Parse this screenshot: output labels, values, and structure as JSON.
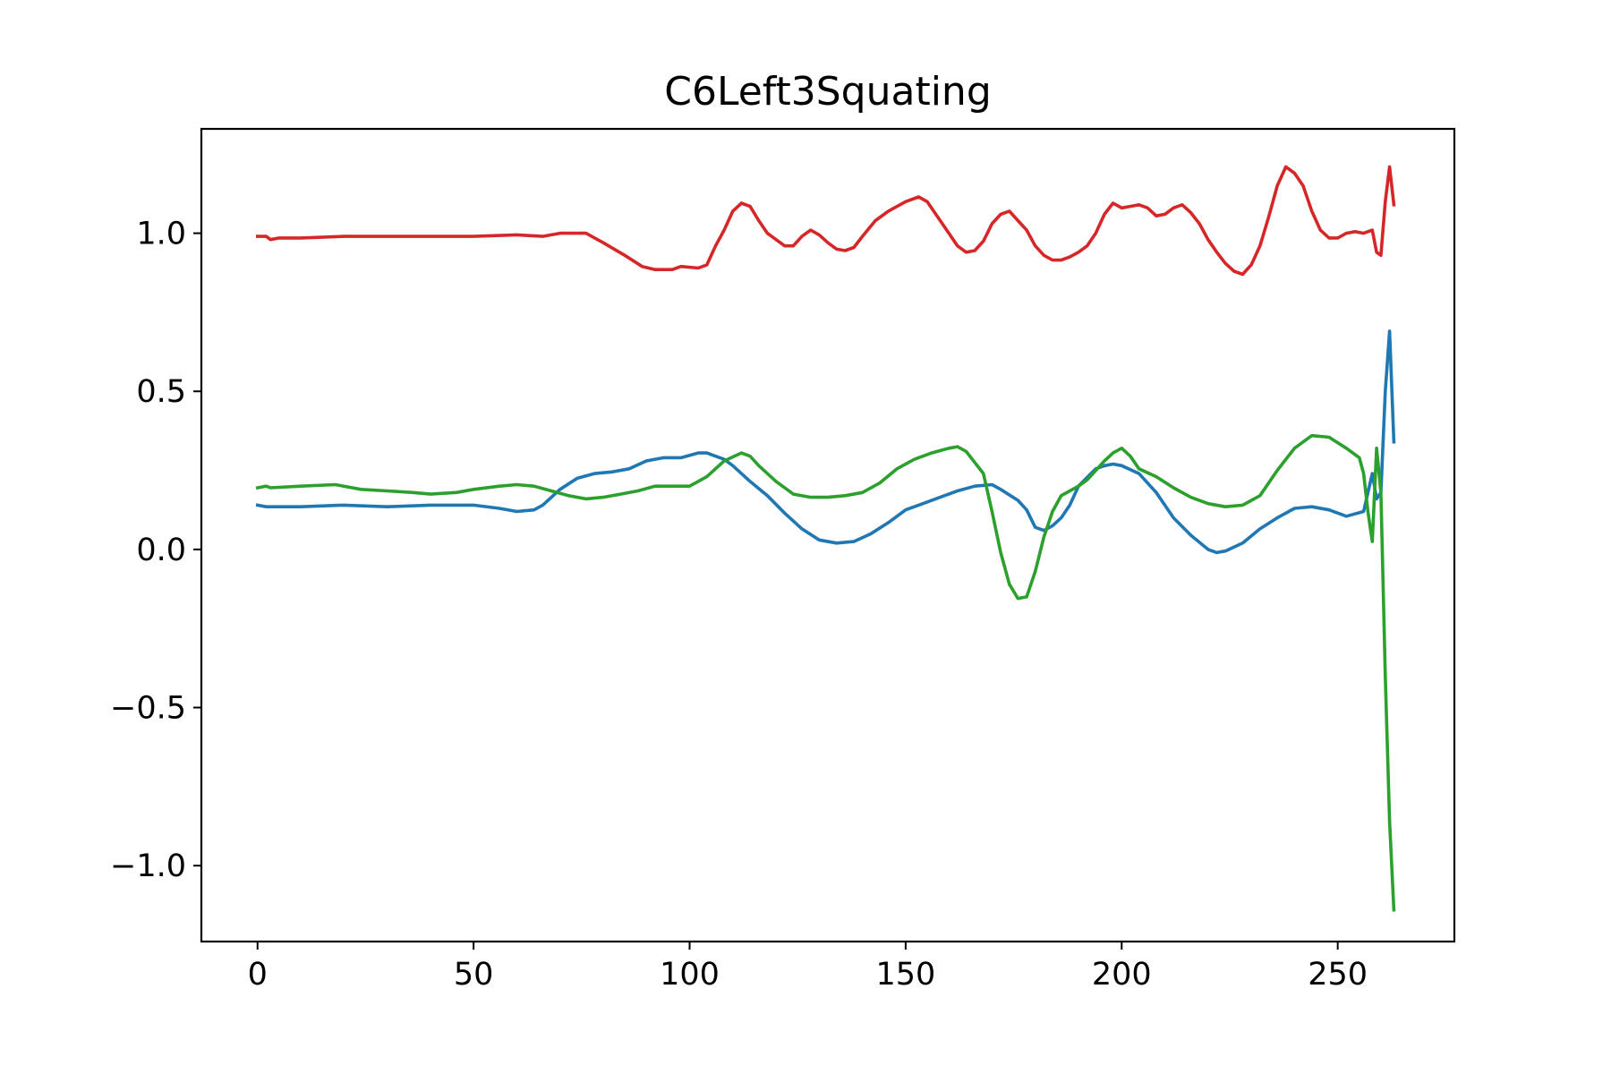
{
  "chart_data": {
    "type": "line",
    "title": "C6Left3Squating",
    "xlabel": "",
    "ylabel": "",
    "xlim": [
      -13,
      277
    ],
    "ylim": [
      -1.24,
      1.33
    ],
    "x_ticks": [
      0,
      50,
      100,
      150,
      200,
      250
    ],
    "x_tick_labels": [
      "0",
      "50",
      "100",
      "150",
      "200",
      "250"
    ],
    "y_ticks": [
      1.0,
      0.5,
      0.0,
      -0.5,
      -1.0
    ],
    "y_tick_labels": [
      "1.0",
      "0.5",
      "0.0",
      "−0.5",
      "−1.0"
    ],
    "grid": false,
    "legend": "none",
    "series": [
      {
        "color": "#d62728",
        "points": [
          [
            0,
            0.99
          ],
          [
            2,
            0.99
          ],
          [
            3,
            0.98
          ],
          [
            5,
            0.985
          ],
          [
            10,
            0.985
          ],
          [
            20,
            0.99
          ],
          [
            30,
            0.99
          ],
          [
            40,
            0.99
          ],
          [
            50,
            0.99
          ],
          [
            60,
            0.995
          ],
          [
            66,
            0.99
          ],
          [
            70,
            1.0
          ],
          [
            76,
            1.0
          ],
          [
            80,
            0.97
          ],
          [
            85,
            0.93
          ],
          [
            89,
            0.895
          ],
          [
            92,
            0.885
          ],
          [
            96,
            0.885
          ],
          [
            98,
            0.895
          ],
          [
            102,
            0.89
          ],
          [
            104,
            0.9
          ],
          [
            106,
            0.96
          ],
          [
            108,
            1.01
          ],
          [
            110,
            1.07
          ],
          [
            112,
            1.095
          ],
          [
            114,
            1.085
          ],
          [
            116,
            1.04
          ],
          [
            118,
            1.0
          ],
          [
            120,
            0.98
          ],
          [
            122,
            0.96
          ],
          [
            124,
            0.96
          ],
          [
            126,
            0.99
          ],
          [
            128,
            1.01
          ],
          [
            130,
            0.995
          ],
          [
            132,
            0.97
          ],
          [
            134,
            0.95
          ],
          [
            136,
            0.945
          ],
          [
            138,
            0.955
          ],
          [
            140,
            0.99
          ],
          [
            143,
            1.04
          ],
          [
            146,
            1.07
          ],
          [
            150,
            1.1
          ],
          [
            153,
            1.115
          ],
          [
            155,
            1.1
          ],
          [
            158,
            1.04
          ],
          [
            160,
            1.0
          ],
          [
            162,
            0.96
          ],
          [
            164,
            0.94
          ],
          [
            166,
            0.945
          ],
          [
            168,
            0.975
          ],
          [
            170,
            1.03
          ],
          [
            172,
            1.06
          ],
          [
            174,
            1.07
          ],
          [
            176,
            1.04
          ],
          [
            178,
            1.01
          ],
          [
            180,
            0.96
          ],
          [
            182,
            0.93
          ],
          [
            184,
            0.915
          ],
          [
            186,
            0.915
          ],
          [
            188,
            0.925
          ],
          [
            190,
            0.94
          ],
          [
            192,
            0.96
          ],
          [
            194,
            1.0
          ],
          [
            196,
            1.06
          ],
          [
            198,
            1.095
          ],
          [
            200,
            1.08
          ],
          [
            202,
            1.085
          ],
          [
            204,
            1.09
          ],
          [
            206,
            1.08
          ],
          [
            208,
            1.055
          ],
          [
            210,
            1.06
          ],
          [
            212,
            1.08
          ],
          [
            214,
            1.09
          ],
          [
            216,
            1.065
          ],
          [
            218,
            1.03
          ],
          [
            220,
            0.98
          ],
          [
            222,
            0.94
          ],
          [
            224,
            0.905
          ],
          [
            226,
            0.88
          ],
          [
            228,
            0.87
          ],
          [
            230,
            0.9
          ],
          [
            232,
            0.96
          ],
          [
            234,
            1.05
          ],
          [
            236,
            1.15
          ],
          [
            238,
            1.21
          ],
          [
            240,
            1.19
          ],
          [
            242,
            1.15
          ],
          [
            244,
            1.07
          ],
          [
            246,
            1.01
          ],
          [
            248,
            0.985
          ],
          [
            250,
            0.985
          ],
          [
            252,
            1.0
          ],
          [
            254,
            1.005
          ],
          [
            256,
            1.0
          ],
          [
            258,
            1.01
          ],
          [
            259,
            0.94
          ],
          [
            260,
            0.93
          ],
          [
            261,
            1.1
          ],
          [
            262,
            1.21
          ],
          [
            263,
            1.09
          ]
        ]
      },
      {
        "color": "#1f77b4",
        "points": [
          [
            0,
            0.14
          ],
          [
            2,
            0.135
          ],
          [
            4,
            0.135
          ],
          [
            10,
            0.135
          ],
          [
            20,
            0.14
          ],
          [
            30,
            0.135
          ],
          [
            40,
            0.14
          ],
          [
            50,
            0.14
          ],
          [
            56,
            0.13
          ],
          [
            60,
            0.12
          ],
          [
            64,
            0.125
          ],
          [
            66,
            0.14
          ],
          [
            70,
            0.19
          ],
          [
            74,
            0.225
          ],
          [
            78,
            0.24
          ],
          [
            82,
            0.245
          ],
          [
            86,
            0.255
          ],
          [
            90,
            0.28
          ],
          [
            94,
            0.29
          ],
          [
            98,
            0.29
          ],
          [
            102,
            0.305
          ],
          [
            104,
            0.305
          ],
          [
            106,
            0.295
          ],
          [
            108,
            0.285
          ],
          [
            110,
            0.265
          ],
          [
            114,
            0.215
          ],
          [
            118,
            0.17
          ],
          [
            122,
            0.115
          ],
          [
            126,
            0.065
          ],
          [
            130,
            0.03
          ],
          [
            134,
            0.02
          ],
          [
            138,
            0.025
          ],
          [
            142,
            0.05
          ],
          [
            146,
            0.085
          ],
          [
            150,
            0.125
          ],
          [
            154,
            0.145
          ],
          [
            158,
            0.165
          ],
          [
            162,
            0.185
          ],
          [
            166,
            0.2
          ],
          [
            170,
            0.205
          ],
          [
            172,
            0.19
          ],
          [
            176,
            0.155
          ],
          [
            178,
            0.125
          ],
          [
            180,
            0.07
          ],
          [
            182,
            0.06
          ],
          [
            184,
            0.075
          ],
          [
            186,
            0.1
          ],
          [
            188,
            0.14
          ],
          [
            190,
            0.2
          ],
          [
            194,
            0.255
          ],
          [
            196,
            0.265
          ],
          [
            198,
            0.27
          ],
          [
            200,
            0.265
          ],
          [
            204,
            0.24
          ],
          [
            208,
            0.18
          ],
          [
            212,
            0.1
          ],
          [
            216,
            0.045
          ],
          [
            220,
            0.0
          ],
          [
            222,
            -0.01
          ],
          [
            224,
            -0.005
          ],
          [
            228,
            0.02
          ],
          [
            232,
            0.065
          ],
          [
            236,
            0.1
          ],
          [
            240,
            0.13
          ],
          [
            244,
            0.135
          ],
          [
            248,
            0.125
          ],
          [
            252,
            0.105
          ],
          [
            256,
            0.12
          ],
          [
            258,
            0.24
          ],
          [
            259,
            0.16
          ],
          [
            260,
            0.18
          ],
          [
            261,
            0.5
          ],
          [
            262,
            0.69
          ],
          [
            263,
            0.34
          ]
        ]
      },
      {
        "color": "#2ca02c",
        "points": [
          [
            0,
            0.195
          ],
          [
            2,
            0.2
          ],
          [
            3,
            0.195
          ],
          [
            10,
            0.2
          ],
          [
            18,
            0.205
          ],
          [
            24,
            0.19
          ],
          [
            30,
            0.185
          ],
          [
            36,
            0.18
          ],
          [
            40,
            0.175
          ],
          [
            46,
            0.18
          ],
          [
            50,
            0.19
          ],
          [
            56,
            0.2
          ],
          [
            60,
            0.205
          ],
          [
            64,
            0.2
          ],
          [
            68,
            0.185
          ],
          [
            72,
            0.17
          ],
          [
            76,
            0.16
          ],
          [
            80,
            0.165
          ],
          [
            84,
            0.175
          ],
          [
            88,
            0.185
          ],
          [
            92,
            0.2
          ],
          [
            96,
            0.2
          ],
          [
            100,
            0.2
          ],
          [
            104,
            0.23
          ],
          [
            108,
            0.28
          ],
          [
            112,
            0.305
          ],
          [
            114,
            0.295
          ],
          [
            116,
            0.265
          ],
          [
            120,
            0.215
          ],
          [
            124,
            0.175
          ],
          [
            128,
            0.165
          ],
          [
            132,
            0.165
          ],
          [
            136,
            0.17
          ],
          [
            140,
            0.18
          ],
          [
            144,
            0.21
          ],
          [
            148,
            0.255
          ],
          [
            152,
            0.285
          ],
          [
            156,
            0.305
          ],
          [
            160,
            0.32
          ],
          [
            162,
            0.325
          ],
          [
            164,
            0.31
          ],
          [
            166,
            0.275
          ],
          [
            168,
            0.24
          ],
          [
            170,
            0.12
          ],
          [
            172,
            -0.01
          ],
          [
            174,
            -0.11
          ],
          [
            176,
            -0.155
          ],
          [
            178,
            -0.15
          ],
          [
            180,
            -0.07
          ],
          [
            182,
            0.04
          ],
          [
            184,
            0.12
          ],
          [
            186,
            0.17
          ],
          [
            188,
            0.185
          ],
          [
            190,
            0.2
          ],
          [
            192,
            0.22
          ],
          [
            196,
            0.28
          ],
          [
            198,
            0.305
          ],
          [
            200,
            0.32
          ],
          [
            202,
            0.295
          ],
          [
            204,
            0.255
          ],
          [
            208,
            0.23
          ],
          [
            212,
            0.195
          ],
          [
            216,
            0.165
          ],
          [
            220,
            0.145
          ],
          [
            224,
            0.135
          ],
          [
            228,
            0.14
          ],
          [
            232,
            0.17
          ],
          [
            236,
            0.25
          ],
          [
            240,
            0.32
          ],
          [
            244,
            0.36
          ],
          [
            248,
            0.355
          ],
          [
            252,
            0.32
          ],
          [
            255,
            0.29
          ],
          [
            256,
            0.24
          ],
          [
            257,
            0.12
          ],
          [
            258,
            0.025
          ],
          [
            259,
            0.32
          ],
          [
            260,
            0.18
          ],
          [
            261,
            -0.4
          ],
          [
            262,
            -0.86
          ],
          [
            263,
            -1.14
          ]
        ]
      }
    ]
  }
}
